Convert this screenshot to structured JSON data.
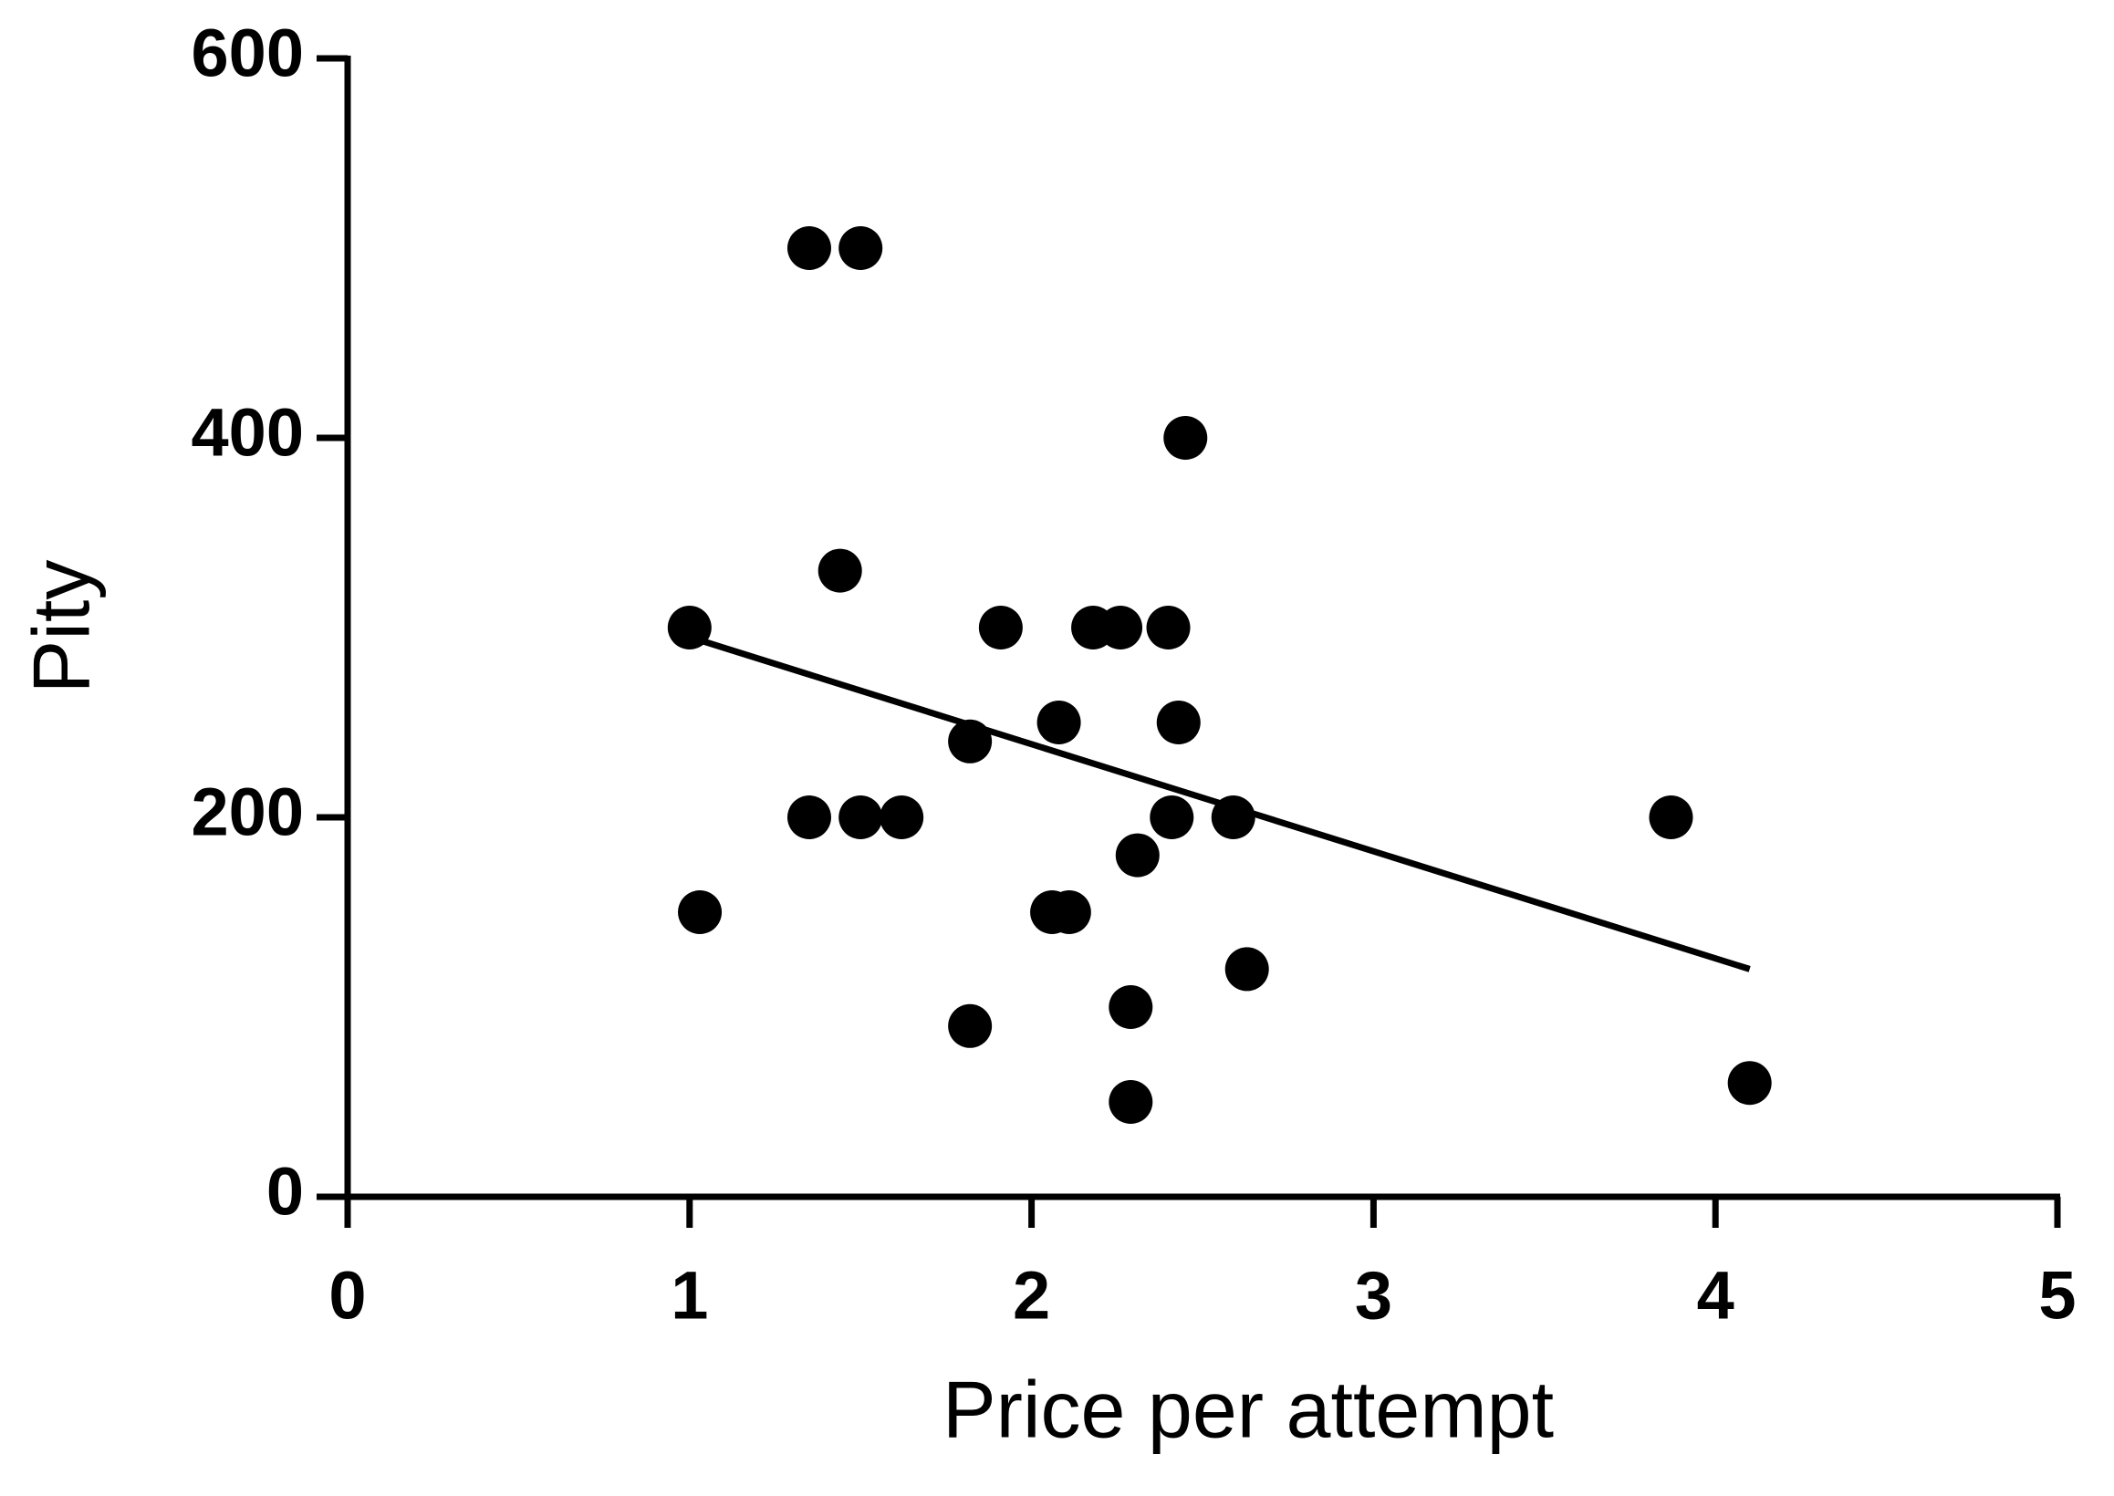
{
  "chart_data": {
    "type": "scatter",
    "x_label": "Price per attempt",
    "y_label": "Pity",
    "x": [
      1.35,
      1.5,
      2.45,
      1.44,
      1.0,
      1.91,
      2.18,
      2.26,
      2.4,
      2.08,
      2.43,
      1.82,
      1.35,
      1.5,
      1.62,
      2.41,
      2.59,
      3.87,
      2.31,
      1.03,
      2.06,
      2.11,
      2.63,
      1.82,
      2.29,
      2.29,
      4.1
    ],
    "values": [
      500,
      500,
      400,
      330,
      300,
      300,
      300,
      300,
      300,
      250,
      250,
      240,
      200,
      200,
      200,
      200,
      200,
      200,
      180,
      150,
      150,
      150,
      120,
      90,
      100,
      50,
      60
    ],
    "color": "#000000",
    "trend": {
      "x": [
        1.0,
        4.1
      ],
      "values": [
        295,
        120
      ]
    },
    "xlim": [
      0,
      5
    ],
    "xticks": [
      0,
      1,
      2,
      3,
      4,
      5
    ],
    "ylim": [
      0,
      600
    ],
    "yticks": [
      0,
      200,
      400,
      600
    ],
    "grid": false
  }
}
